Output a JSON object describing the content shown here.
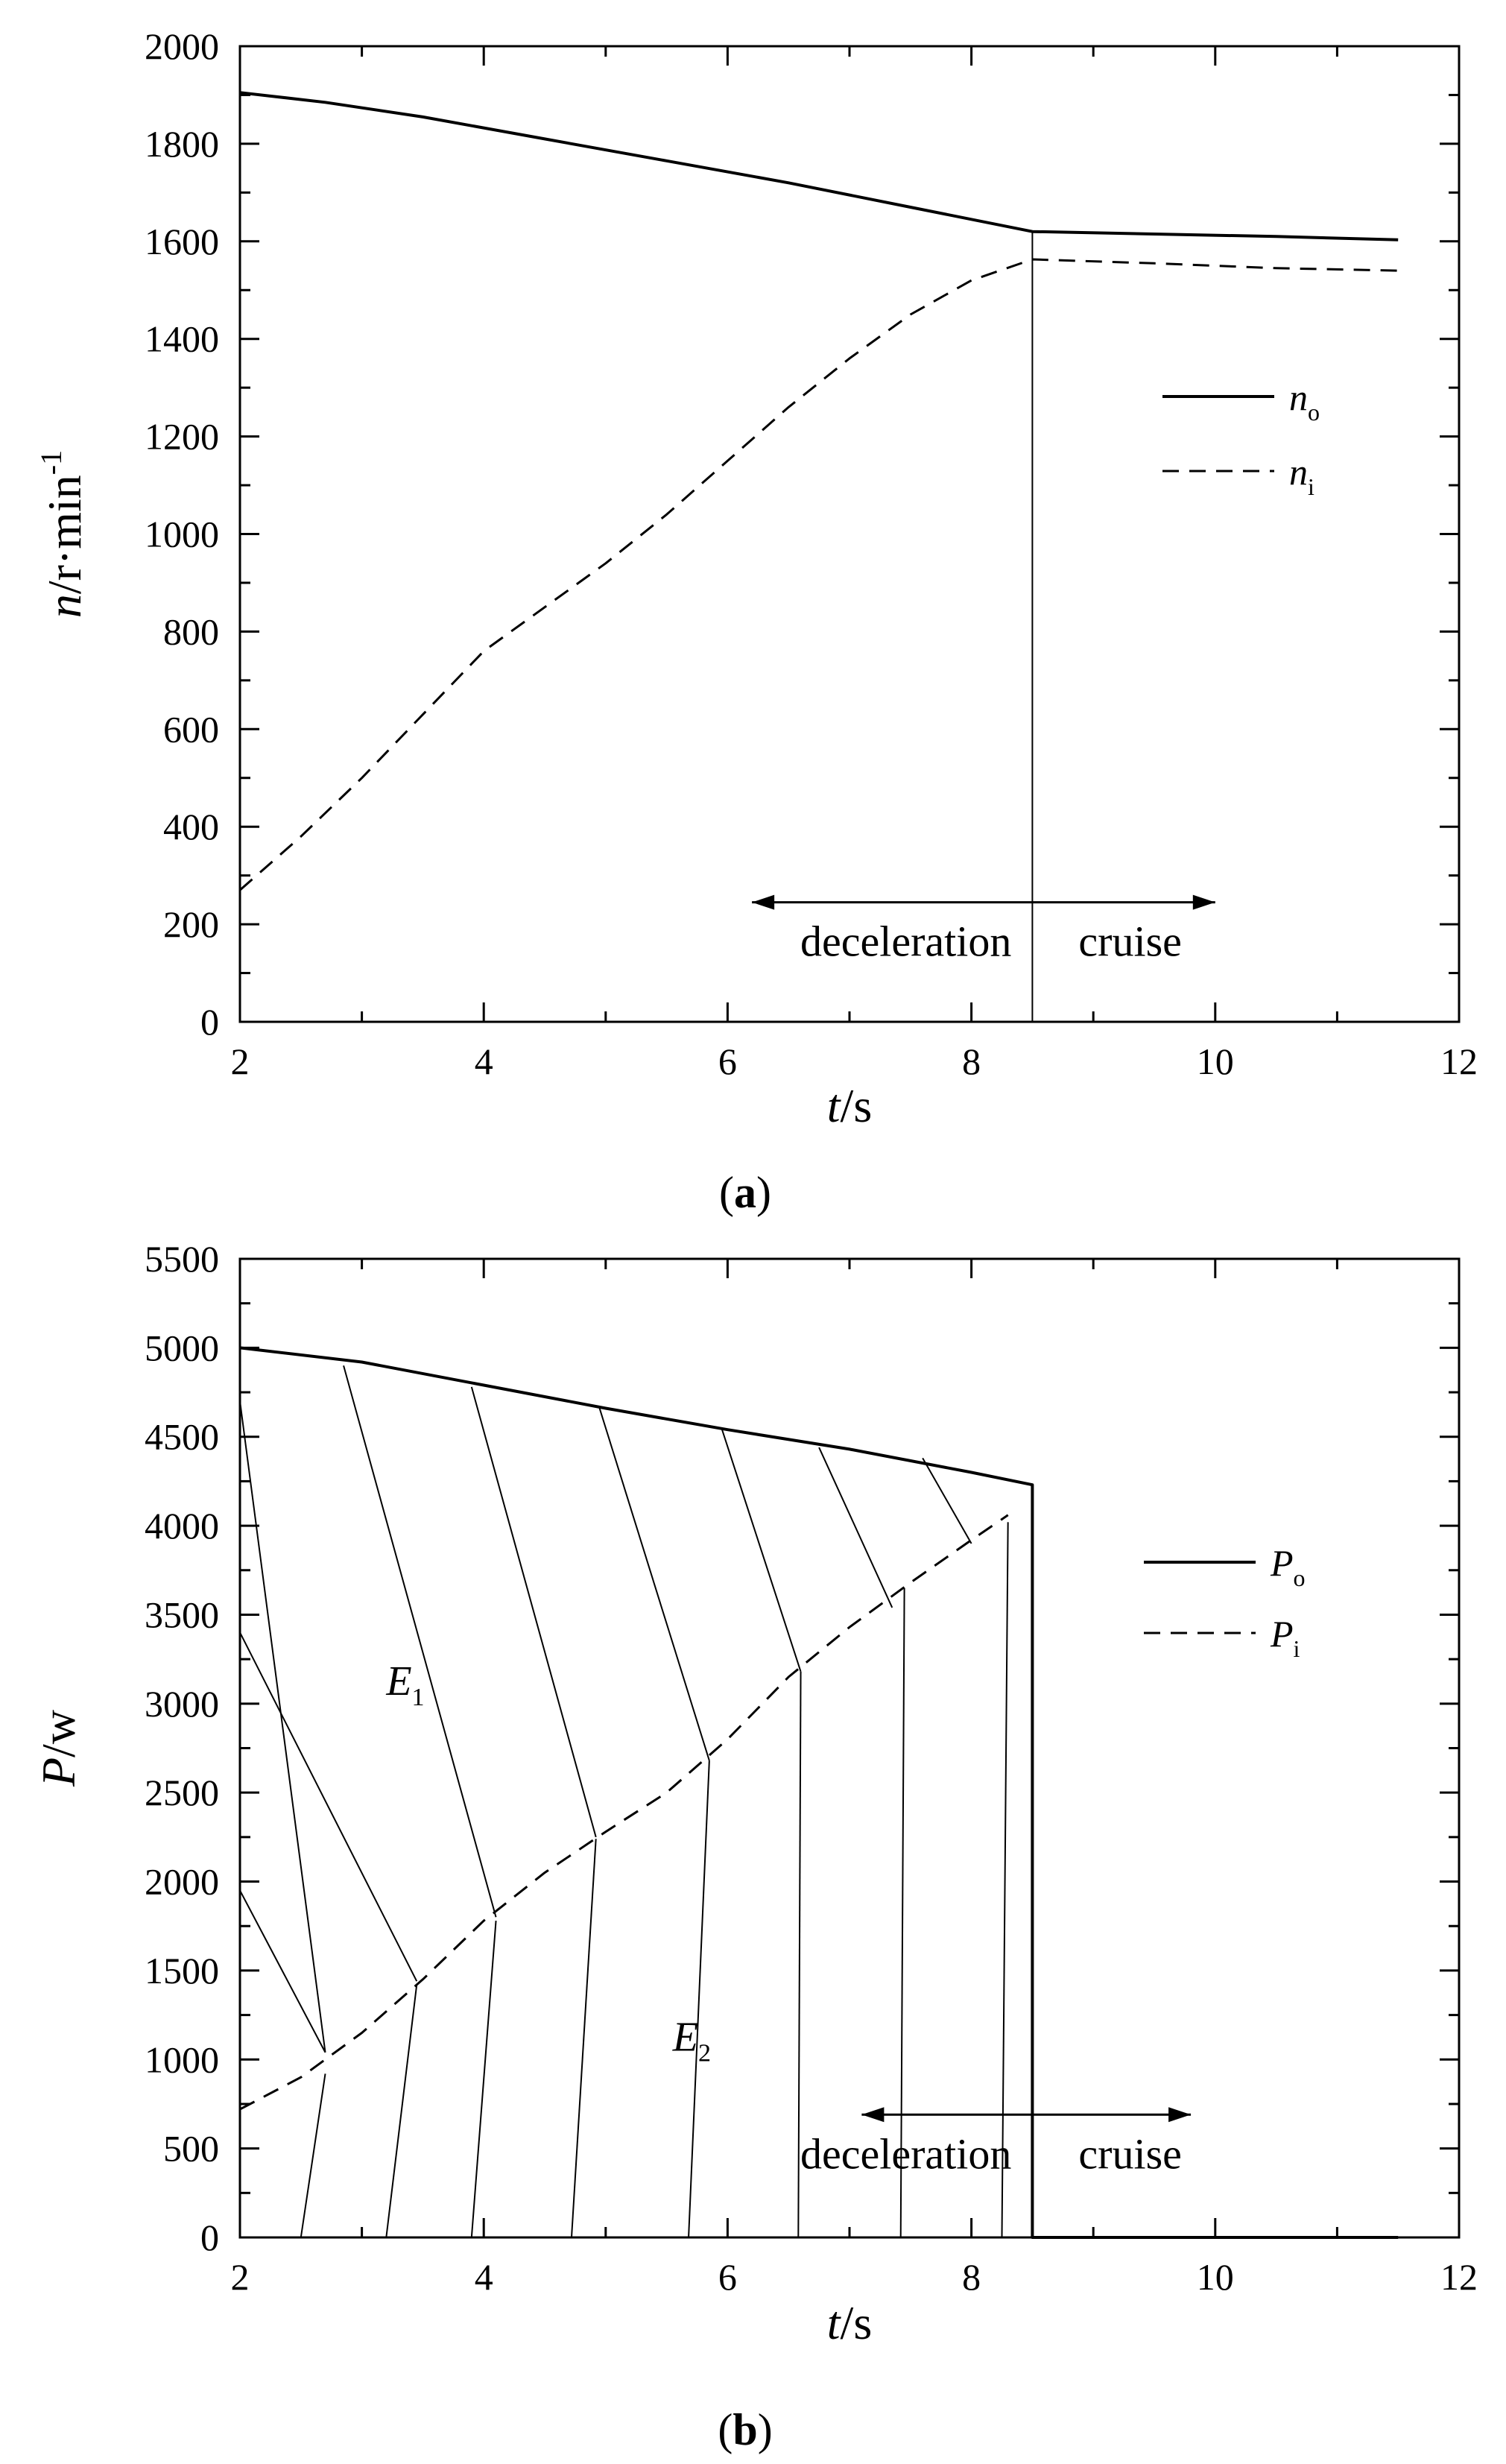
{
  "chart_data": [
    {
      "type": "line",
      "panel_label": "a",
      "xlabel": {
        "var": "t",
        "unit": "/s"
      },
      "ylabel": {
        "var": "n",
        "unit": "/r·min",
        "sup": "-1"
      },
      "xlim": [
        2,
        12
      ],
      "ylim": [
        0,
        2000
      ],
      "xticks": [
        "2",
        "4",
        "6",
        "8",
        "10",
        "12"
      ],
      "yticks": [
        "0",
        "200",
        "400",
        "600",
        "800",
        "1000",
        "1200",
        "1400",
        "1600",
        "1800",
        "2000"
      ],
      "grid": false,
      "legend_position": "right",
      "series": [
        {
          "name": "n",
          "sub": "o",
          "style": "solid",
          "x": [
            2,
            2.7,
            3.5,
            4.5,
            5.5,
            6.5,
            7.5,
            8.5,
            9.5,
            10.5,
            11.5
          ],
          "y": [
            1905,
            1885,
            1855,
            1810,
            1765,
            1720,
            1670,
            1620,
            1615,
            1610,
            1603
          ]
        },
        {
          "name": "n",
          "sub": "i",
          "style": "dashed",
          "x": [
            2,
            2.5,
            3,
            3.5,
            4,
            4.5,
            5,
            5.5,
            6,
            6.5,
            7,
            7.5,
            8,
            8.5,
            9.5,
            10.5,
            11.5
          ],
          "y": [
            270,
            380,
            500,
            630,
            760,
            850,
            940,
            1040,
            1150,
            1260,
            1360,
            1450,
            1520,
            1563,
            1555,
            1545,
            1540
          ]
        }
      ],
      "divider_x": 8.5,
      "annotations": {
        "left_text": "deceleration",
        "right_text": "cruise",
        "arrow_y": 245,
        "arrow_from": 6.2,
        "arrow_to": 10
      }
    },
    {
      "type": "line",
      "panel_label": "b",
      "xlabel": {
        "var": "t",
        "unit": "/s"
      },
      "ylabel": {
        "var": "P",
        "unit": "/w"
      },
      "xlim": [
        2,
        12
      ],
      "ylim": [
        0,
        5500
      ],
      "xticks": [
        "2",
        "4",
        "6",
        "8",
        "10",
        "12"
      ],
      "yticks": [
        "0",
        "500",
        "1000",
        "1500",
        "2000",
        "2500",
        "3000",
        "3500",
        "4000",
        "4500",
        "5000",
        "5500"
      ],
      "grid": false,
      "legend_position": "right",
      "series": [
        {
          "name": "P",
          "sub": "o",
          "style": "solid",
          "x": [
            2,
            3,
            4,
            5,
            6,
            7,
            8,
            8.5,
            8.5,
            11.5
          ],
          "y": [
            5000,
            4920,
            4790,
            4660,
            4540,
            4430,
            4300,
            4230,
            0,
            0
          ]
        },
        {
          "name": "P",
          "sub": "i",
          "style": "dashed",
          "x": [
            2,
            2.5,
            3,
            3.5,
            4,
            4.5,
            5,
            5.5,
            6,
            6.5,
            7,
            7.5,
            8,
            8.3
          ],
          "y": [
            720,
            900,
            1150,
            1450,
            1780,
            2050,
            2280,
            2500,
            2800,
            3150,
            3430,
            3680,
            3920,
            4060
          ]
        }
      ],
      "regions": [
        {
          "label": "E",
          "sub": "1",
          "x": 3.2,
          "y": 3050
        },
        {
          "label": "E",
          "sub": "2",
          "x": 5.55,
          "y": 1050
        }
      ],
      "hatch_upper": [
        [
          2,
          4700,
          2.7,
          1040
        ],
        [
          2,
          3400,
          3.45,
          1440
        ],
        [
          2,
          1950,
          2.7,
          1040
        ],
        [
          2.85,
          4900,
          4.1,
          1800
        ],
        [
          3.9,
          4780,
          4.92,
          2250
        ],
        [
          4.95,
          4660,
          5.85,
          2680
        ],
        [
          5.95,
          4550,
          6.6,
          3180
        ],
        [
          6.75,
          4440,
          7.35,
          3540
        ],
        [
          7.6,
          4380,
          8.0,
          3900
        ]
      ],
      "hatch_lower": [
        [
          2.5,
          0,
          2.7,
          920
        ],
        [
          3.2,
          0,
          3.45,
          1420
        ],
        [
          3.9,
          0,
          4.1,
          1780
        ],
        [
          4.72,
          0,
          4.92,
          2240
        ],
        [
          5.68,
          0,
          5.85,
          2680
        ],
        [
          6.58,
          0,
          6.6,
          3180
        ],
        [
          7.42,
          0,
          7.45,
          3650
        ],
        [
          8.25,
          0,
          8.3,
          4020
        ]
      ],
      "divider_x": 8.5,
      "annotations": {
        "left_text": "deceleration",
        "right_text": "cruise",
        "arrow_y": 690,
        "arrow_from": 7.1,
        "arrow_to": 9.8
      }
    }
  ]
}
